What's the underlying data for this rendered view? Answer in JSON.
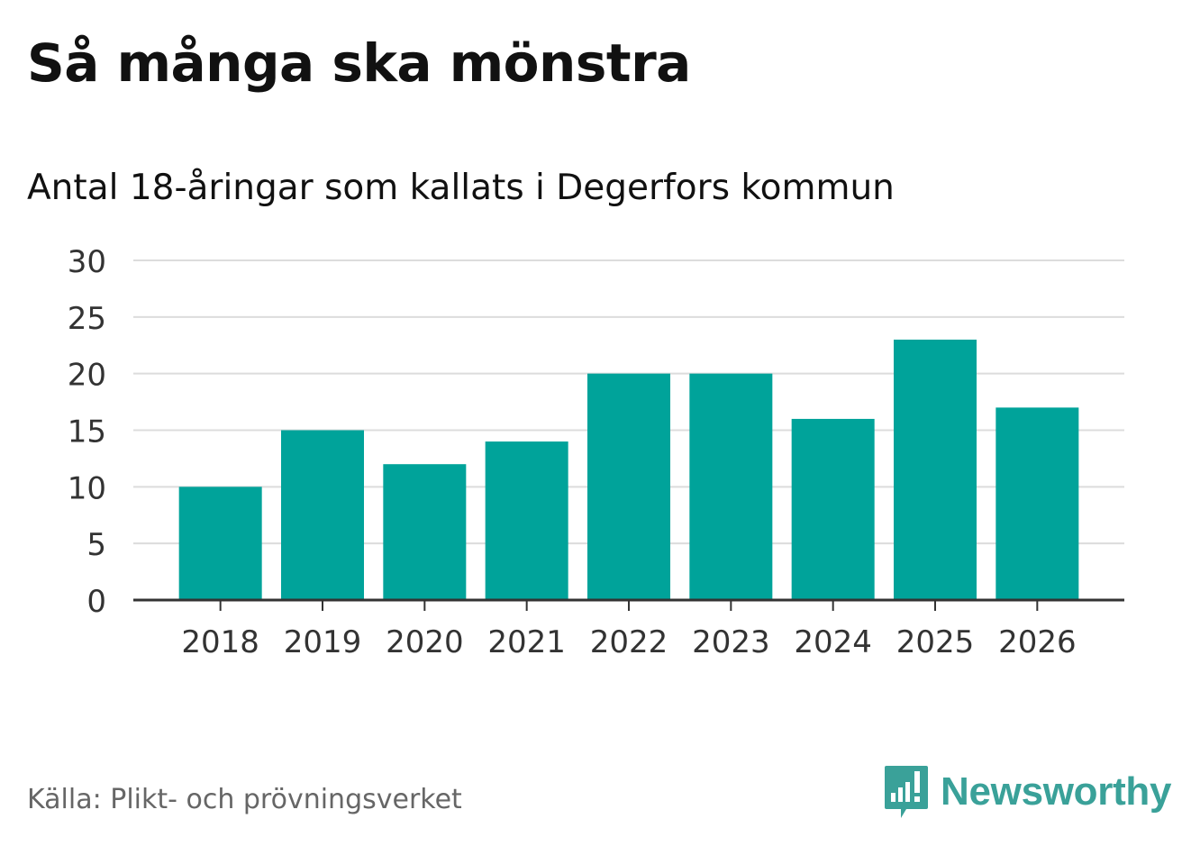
{
  "header": {
    "title": "Så många ska mönstra",
    "subtitle": "Antal 18-åringar som kallats i Degerfors kommun"
  },
  "footer": {
    "source": "Källa: Plikt- och prövningsverket",
    "brand": "Newsworthy"
  },
  "colors": {
    "bar": "#00a39a",
    "grid": "#dcdcdc",
    "axis": "#333333",
    "brand": "#3aa199"
  },
  "chart_data": {
    "type": "bar",
    "title": "Så många ska mönstra",
    "subtitle": "Antal 18-åringar som kallats i Degerfors kommun",
    "categories": [
      "2018",
      "2019",
      "2020",
      "2021",
      "2022",
      "2023",
      "2024",
      "2025",
      "2026"
    ],
    "values": [
      10,
      15,
      12,
      14,
      20,
      20,
      16,
      23,
      17
    ],
    "xlabel": "",
    "ylabel": "",
    "ylim": [
      0,
      30
    ],
    "yticks": [
      0,
      5,
      10,
      15,
      20,
      25,
      30
    ],
    "grid": true,
    "legend": "none"
  }
}
